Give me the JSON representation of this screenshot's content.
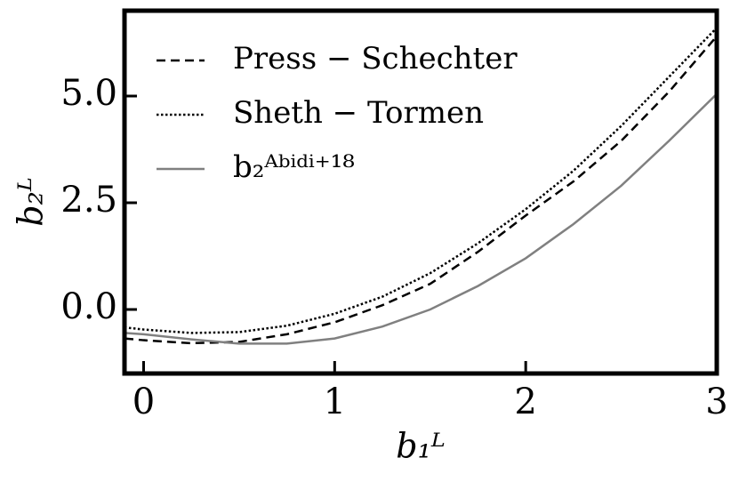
{
  "chart_data": {
    "type": "line",
    "xlabel": "b₁ᴸ",
    "ylabel": "b₂ᴸ",
    "x": [
      -0.1,
      0,
      0.25,
      0.5,
      0.75,
      1.0,
      1.25,
      1.5,
      1.75,
      2.0,
      2.25,
      2.5,
      2.75,
      3.0
    ],
    "series": [
      {
        "name": "Press − Schechter",
        "color": "#000000",
        "dash": "dashed",
        "values": [
          -0.68,
          -0.72,
          -0.79,
          -0.76,
          -0.58,
          -0.3,
          0.1,
          0.6,
          1.35,
          2.2,
          3.0,
          3.95,
          5.1,
          6.4
        ]
      },
      {
        "name": "Sheth − Tormen",
        "color": "#000000",
        "dash": "dotted",
        "values": [
          -0.42,
          -0.47,
          -0.55,
          -0.53,
          -0.38,
          -0.1,
          0.3,
          0.85,
          1.55,
          2.35,
          3.25,
          4.3,
          5.45,
          6.6
        ]
      },
      {
        "name": "b₂ᴬᵇⁱᵈⁱ⁺¹⁸",
        "color": "#808080",
        "dash": "solid",
        "values": [
          -0.55,
          -0.58,
          -0.7,
          -0.8,
          -0.8,
          -0.68,
          -0.4,
          0.0,
          0.55,
          1.2,
          2.0,
          2.9,
          3.95,
          5.05
        ]
      }
    ],
    "xlim": [
      -0.1,
      3.0
    ],
    "ylim": [
      -1.5,
      7.0
    ],
    "xticks": [
      0,
      1,
      2,
      3
    ],
    "yticks": [
      {
        "value": 0,
        "label": "0.0"
      },
      {
        "value": 2.5,
        "label": "2.5"
      },
      {
        "value": 5,
        "label": "5.0"
      }
    ],
    "grid": false,
    "legend": "upper-left"
  }
}
